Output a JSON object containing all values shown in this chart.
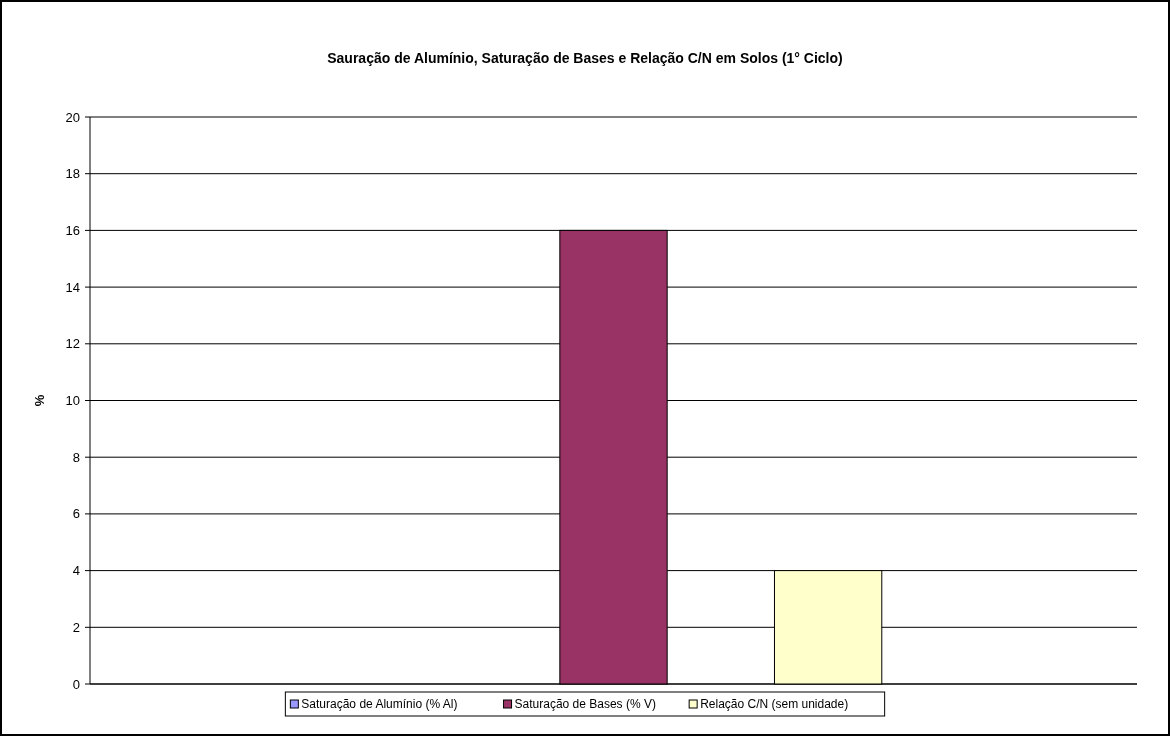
{
  "chart_data": {
    "type": "bar",
    "title": "Sauração de Alumínio, Saturação de Bases e Relação C/N em Solos (1° Ciclo)",
    "ylabel": "%",
    "categories": [
      null
    ],
    "series": [
      {
        "name": "Saturação de Alumínio (% Al)",
        "color": "#9999ff",
        "values": [
          0
        ]
      },
      {
        "name": "Saturação de Bases (% V)",
        "color": "#993366",
        "values": [
          16
        ]
      },
      {
        "name": "Relação C/N (sem unidade)",
        "color": "#ffffcc",
        "values": [
          4
        ]
      }
    ],
    "ylim": [
      0,
      20
    ],
    "yticks": [
      0,
      2,
      4,
      6,
      8,
      10,
      12,
      14,
      16,
      18,
      20
    ],
    "grid": "y",
    "legend": "bottom"
  }
}
